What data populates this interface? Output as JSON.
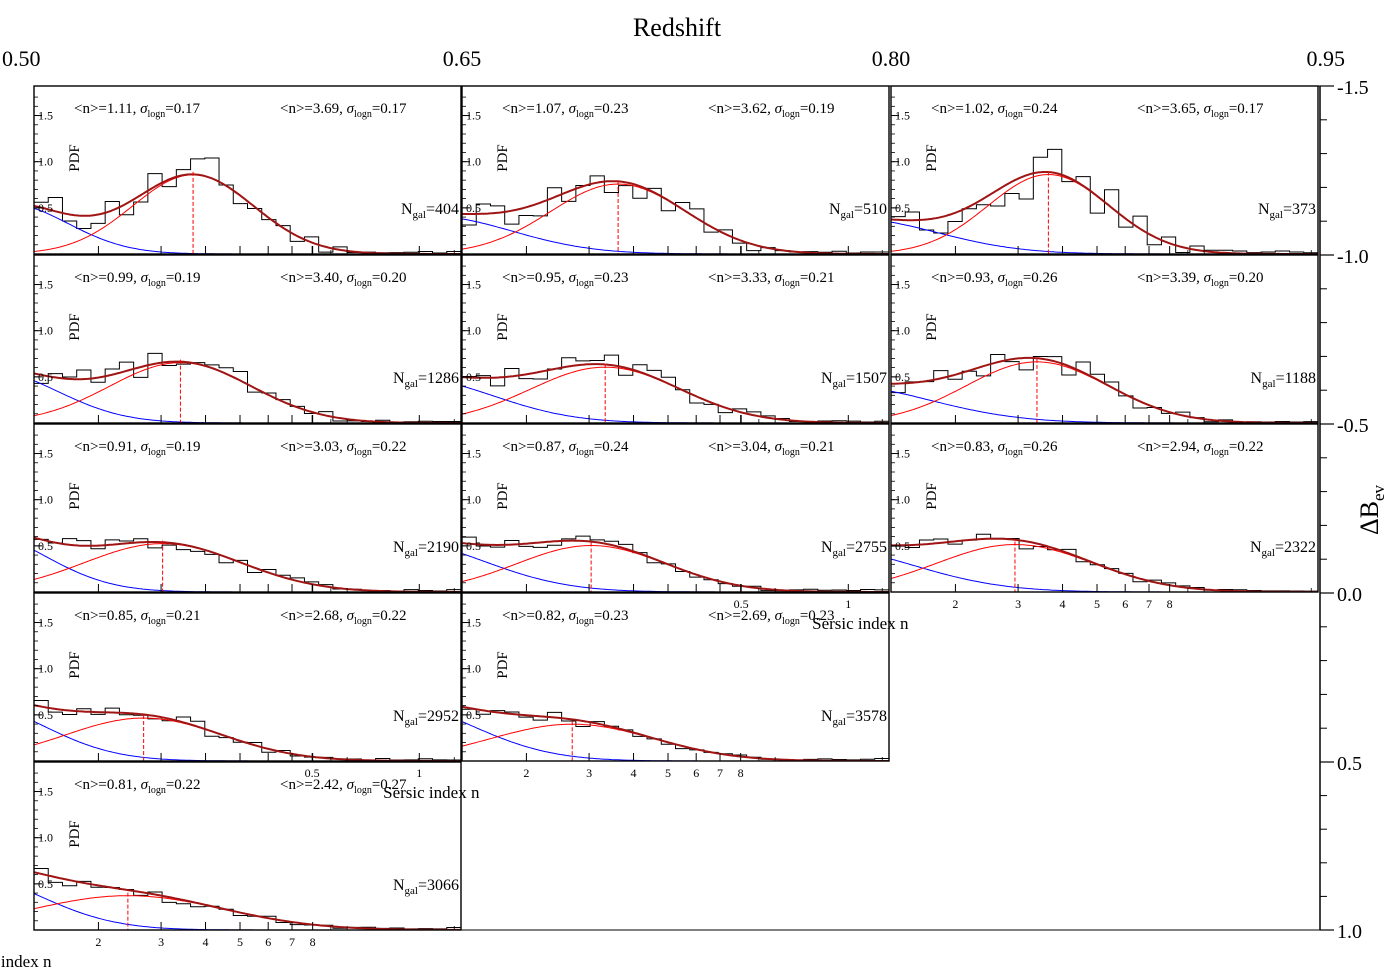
{
  "figure": {
    "top_axis_label": "Redshift",
    "top_ticks": [
      "0.50",
      "0.65",
      "0.80",
      "0.95"
    ],
    "right_axis_label": "ΔB",
    "right_axis_label_sub": "ev",
    "right_ticks": [
      "-1.5",
      "-1.0",
      "-0.5",
      "0.0",
      "0.5",
      "1.0"
    ],
    "xlabel": "Sersic index n",
    "ylabel": "PDF",
    "x_ticks": [
      "0.5",
      "1",
      "2",
      "3",
      "4",
      "5",
      "6",
      "7",
      "8"
    ],
    "y_ticks": [
      "0.5",
      "1.0",
      "1.5"
    ],
    "colors": {
      "histogram": "#000000",
      "blue_component": "#0000ff",
      "red_component": "#ff0000",
      "total": "#a01414"
    }
  },
  "chart_data": [
    {
      "type": "line",
      "row": 1,
      "col": 1,
      "comp1": {
        "mean_n": "1.11",
        "sigma": "0.17"
      },
      "comp2": {
        "mean_n": "3.69",
        "sigma": "0.17"
      },
      "ngal": "404"
    },
    {
      "type": "line",
      "row": 1,
      "col": 2,
      "comp1": {
        "mean_n": "1.07",
        "sigma": "0.23"
      },
      "comp2": {
        "mean_n": "3.62",
        "sigma": "0.19"
      },
      "ngal": "510"
    },
    {
      "type": "line",
      "row": 1,
      "col": 3,
      "comp1": {
        "mean_n": "1.02",
        "sigma": "0.24"
      },
      "comp2": {
        "mean_n": "3.65",
        "sigma": "0.17"
      },
      "ngal": "373"
    },
    {
      "type": "line",
      "row": 2,
      "col": 1,
      "comp1": {
        "mean_n": "0.99",
        "sigma": "0.19"
      },
      "comp2": {
        "mean_n": "3.40",
        "sigma": "0.20"
      },
      "ngal": "1286"
    },
    {
      "type": "line",
      "row": 2,
      "col": 2,
      "comp1": {
        "mean_n": "0.95",
        "sigma": "0.23"
      },
      "comp2": {
        "mean_n": "3.33",
        "sigma": "0.21"
      },
      "ngal": "1507"
    },
    {
      "type": "line",
      "row": 2,
      "col": 3,
      "comp1": {
        "mean_n": "0.93",
        "sigma": "0.26"
      },
      "comp2": {
        "mean_n": "3.39",
        "sigma": "0.20"
      },
      "ngal": "1188"
    },
    {
      "type": "line",
      "row": 3,
      "col": 1,
      "comp1": {
        "mean_n": "0.91",
        "sigma": "0.19"
      },
      "comp2": {
        "mean_n": "3.03",
        "sigma": "0.22"
      },
      "ngal": "2190"
    },
    {
      "type": "line",
      "row": 3,
      "col": 2,
      "comp1": {
        "mean_n": "0.87",
        "sigma": "0.24"
      },
      "comp2": {
        "mean_n": "3.04",
        "sigma": "0.21"
      },
      "ngal": "2755"
    },
    {
      "type": "line",
      "row": 3,
      "col": 3,
      "comp1": {
        "mean_n": "0.83",
        "sigma": "0.26"
      },
      "comp2": {
        "mean_n": "2.94",
        "sigma": "0.22"
      },
      "ngal": "2322"
    },
    {
      "type": "line",
      "row": 4,
      "col": 1,
      "comp1": {
        "mean_n": "0.85",
        "sigma": "0.21"
      },
      "comp2": {
        "mean_n": "2.68",
        "sigma": "0.22"
      },
      "ngal": "2952"
    },
    {
      "type": "line",
      "row": 4,
      "col": 2,
      "comp1": {
        "mean_n": "0.82",
        "sigma": "0.23"
      },
      "comp2": {
        "mean_n": "2.69",
        "sigma": "0.23"
      },
      "ngal": "3578"
    },
    {
      "type": "line",
      "row": 5,
      "col": 1,
      "comp1": {
        "mean_n": "0.81",
        "sigma": "0.22"
      },
      "comp2": {
        "mean_n": "2.42",
        "sigma": "0.27"
      },
      "ngal": "3066"
    }
  ]
}
